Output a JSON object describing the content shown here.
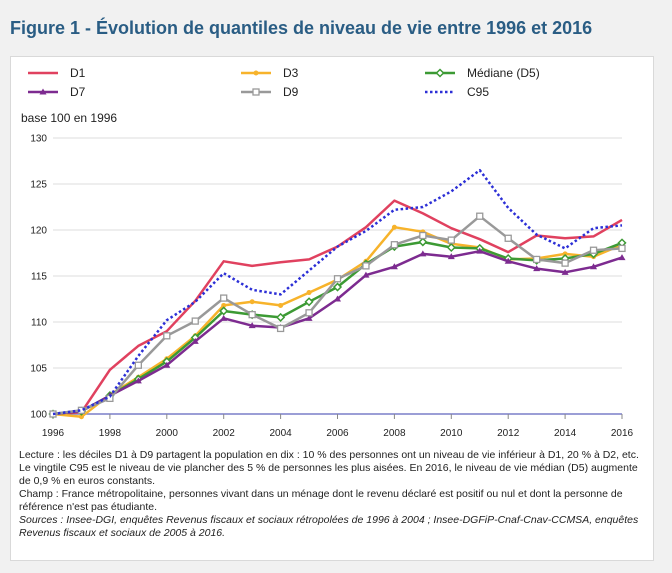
{
  "title": "Figure 1 - Évolution de quantiles de niveau de vie entre 1996 et 2016",
  "y_unit_label": "base 100 en 1996",
  "chart_data": {
    "type": "line",
    "x": [
      1996,
      1997,
      1998,
      1999,
      2000,
      2001,
      2002,
      2003,
      2004,
      2005,
      2006,
      2007,
      2008,
      2009,
      2010,
      2011,
      2012,
      2013,
      2014,
      2015,
      2016
    ],
    "x_tick_labels": [
      "1996",
      "1998",
      "2000",
      "2002",
      "2004",
      "2006",
      "2008",
      "2010",
      "2012",
      "2014",
      "2016"
    ],
    "y_tick_labels": [
      "100",
      "105",
      "110",
      "115",
      "120",
      "125",
      "130"
    ],
    "ylim": [
      100,
      130
    ],
    "xlim": [
      1996,
      2016
    ],
    "grid": "horizontal",
    "legend_position": "top",
    "series": [
      {
        "name": "D1",
        "color": "#e0415f",
        "marker": "none",
        "dash": "solid",
        "values": [
          100,
          100.2,
          104.8,
          107.4,
          109.0,
          112.3,
          116.6,
          116.1,
          116.5,
          116.8,
          118.2,
          120.3,
          123.2,
          121.8,
          120.2,
          119.0,
          117.6,
          119.4,
          119.1,
          119.3,
          121.1
        ]
      },
      {
        "name": "D3",
        "color": "#f7b32b",
        "marker": "dot",
        "dash": "solid",
        "values": [
          100,
          99.7,
          102.1,
          104.0,
          106.0,
          108.5,
          111.8,
          112.2,
          111.8,
          113.2,
          114.6,
          116.6,
          120.3,
          119.8,
          118.5,
          118.1,
          116.8,
          116.9,
          117.4,
          117.1,
          118.4
        ]
      },
      {
        "name": "Médiane (D5)",
        "color": "#3c9a34",
        "marker": "diamond",
        "dash": "solid",
        "values": [
          100,
          100.3,
          102.0,
          103.8,
          105.7,
          108.3,
          111.2,
          110.8,
          110.5,
          112.2,
          113.8,
          116.3,
          118.2,
          118.7,
          118.1,
          118.0,
          116.9,
          116.7,
          116.9,
          117.4,
          118.6
        ]
      },
      {
        "name": "D7",
        "color": "#7d2b90",
        "marker": "triangle",
        "dash": "solid",
        "values": [
          100,
          100.3,
          102.0,
          103.6,
          105.3,
          107.9,
          110.4,
          109.6,
          109.4,
          110.4,
          112.5,
          115.1,
          116.0,
          117.4,
          117.1,
          117.7,
          116.6,
          115.8,
          115.4,
          116.0,
          117.0
        ]
      },
      {
        "name": "D9",
        "color": "#999999",
        "marker": "square",
        "dash": "solid",
        "values": [
          100,
          100.4,
          101.7,
          105.3,
          108.5,
          110.1,
          112.6,
          110.8,
          109.3,
          111.0,
          114.7,
          116.1,
          118.4,
          119.4,
          118.9,
          121.5,
          119.1,
          116.8,
          116.4,
          117.8,
          118.0
        ]
      },
      {
        "name": "C95",
        "color": "#2c2fd6",
        "marker": "none",
        "dash": "dotted",
        "values": [
          100,
          100.4,
          101.9,
          106.3,
          110.2,
          112.2,
          115.3,
          113.5,
          113.0,
          115.6,
          118.2,
          119.9,
          122.2,
          122.5,
          124.2,
          126.5,
          122.4,
          119.5,
          118.0,
          120.2,
          120.5
        ]
      }
    ]
  },
  "notes": {
    "lecture": "Lecture : les déciles D1 à D9 partagent la population en dix : 10 % des personnes ont un niveau de vie inférieur à D1, 20 % à D2, etc. Le vingtile C95 est le niveau de vie plancher des 5 % de personnes les plus aisées. En 2016, le niveau de vie médian (D5) augmente de 0,9 % en euros constants.",
    "champ": "Champ : France métropolitaine, personnes vivant dans un ménage dont le revenu déclaré est positif ou nul et dont la personne de référence n'est pas étudiante.",
    "sources": "Sources : Insee-DGI, enquêtes Revenus fiscaux et sociaux rétropolées de 1996 à 2004 ; Insee-DGFiP-Cnaf-Cnav-CCMSA, enquêtes Revenus fiscaux et sociaux de 2005 à 2016."
  }
}
